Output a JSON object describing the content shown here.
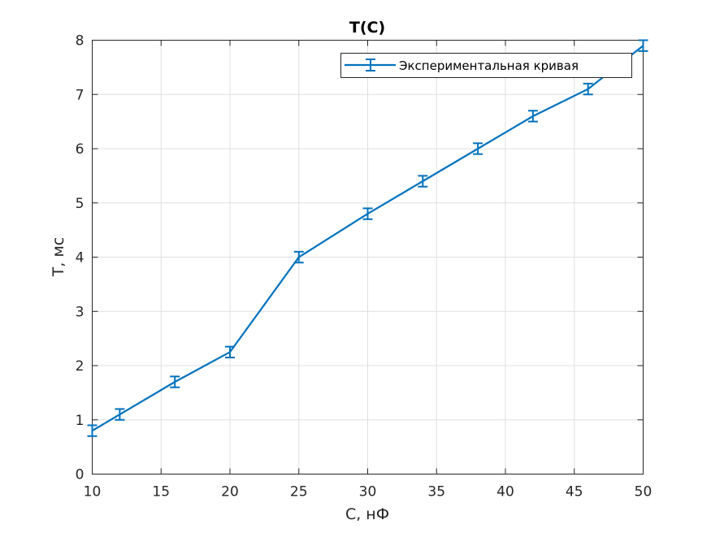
{
  "chart_data": {
    "type": "line",
    "title": "T(C)",
    "xlabel": "C, нФ",
    "ylabel": "T, мс",
    "xlim": [
      10,
      50
    ],
    "ylim": [
      0,
      8
    ],
    "xticks": [
      "10",
      "15",
      "20",
      "25",
      "30",
      "35",
      "40",
      "45",
      "50"
    ],
    "yticks": [
      "0",
      "1",
      "2",
      "3",
      "4",
      "5",
      "6",
      "7",
      "8"
    ],
    "grid": true,
    "legend_position": "top-right",
    "series": [
      {
        "name": "Экспериментальная кривая",
        "color": "#0072BD",
        "error_bars": true,
        "x": [
          10,
          12,
          16,
          20,
          25,
          30,
          34,
          38,
          42,
          46,
          50
        ],
        "y": [
          0.8,
          1.1,
          1.7,
          2.25,
          4.0,
          4.8,
          5.4,
          6.0,
          6.6,
          7.1,
          7.9
        ],
        "error": [
          0.1,
          0.1,
          0.1,
          0.1,
          0.1,
          0.1,
          0.1,
          0.1,
          0.1,
          0.1,
          0.1
        ]
      }
    ]
  }
}
